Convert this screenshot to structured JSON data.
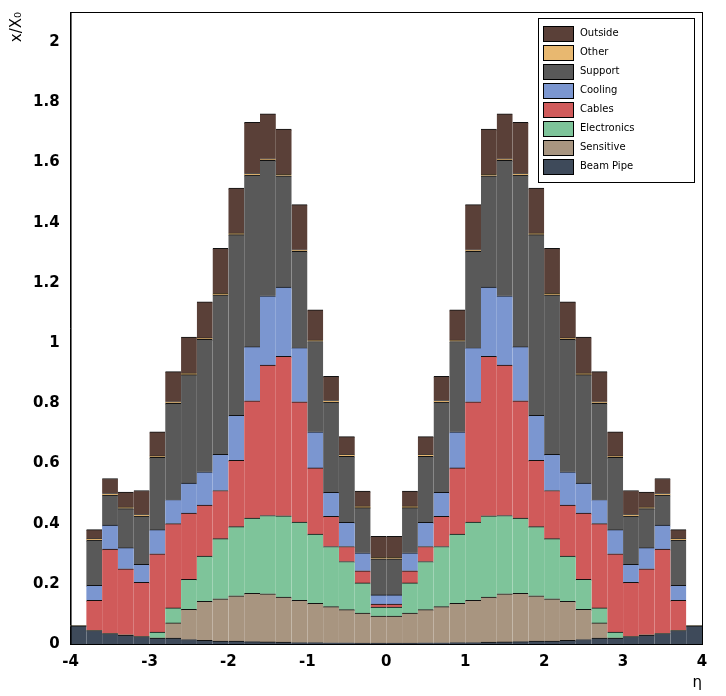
{
  "chart_data": {
    "type": "histogram",
    "stacked": true,
    "grid": false,
    "legend": "upper right",
    "x_label": "η",
    "y_label": "x/X₀",
    "xlim": [
      -4,
      4
    ],
    "xticks": [
      -4,
      -3,
      -2,
      -1,
      0,
      1,
      2,
      3,
      4
    ],
    "ylim": [
      0,
      2.1
    ],
    "yticks": [
      0,
      0.2,
      0.4,
      0.6,
      0.8,
      1,
      1.2,
      1.4,
      1.6,
      1.8,
      2
    ],
    "bins": [
      -4,
      -3.8,
      -3.6,
      -3.4,
      -3.2,
      -3,
      -2.8,
      -2.6,
      -2.4,
      -2.2,
      -2,
      -1.8,
      -1.6,
      -1.4,
      -1.2,
      -1,
      -0.8,
      -0.6,
      -0.4,
      -0.2,
      0,
      0.2,
      0.4,
      0.6,
      0.8,
      1,
      1.2,
      1.4,
      1.6,
      1.8,
      2,
      2.2,
      2.4,
      2.6,
      2.8,
      3,
      3.2,
      3.4,
      3.6,
      3.8,
      4
    ],
    "series": [
      {
        "name": "Beam Pipe",
        "color": "#3e4a5a",
        "values": [
          0.06,
          0.045,
          0.035,
          0.03,
          0.025,
          0.02,
          0.02,
          0.015,
          0.012,
          0.01,
          0.01,
          0.008,
          0.007,
          0.006,
          0.005,
          0.005,
          0.004,
          0.004,
          0.003,
          0.003,
          0.003,
          0.003,
          0.004,
          0.004,
          0.005,
          0.005,
          0.006,
          0.007,
          0.008,
          0.01,
          0.01,
          0.012,
          0.015,
          0.02,
          0.02,
          0.025,
          0.03,
          0.035,
          0.045,
          0.06
        ]
      },
      {
        "name": "Sensitive",
        "color": "#a89580",
        "values": [
          0,
          0,
          0,
          0,
          0,
          0,
          0.05,
          0.1,
          0.13,
          0.14,
          0.15,
          0.16,
          0.16,
          0.15,
          0.14,
          0.13,
          0.12,
          0.11,
          0.1,
          0.09,
          0.09,
          0.1,
          0.11,
          0.12,
          0.13,
          0.14,
          0.15,
          0.16,
          0.16,
          0.15,
          0.14,
          0.13,
          0.1,
          0.05,
          0,
          0,
          0,
          0,
          0,
          0
        ]
      },
      {
        "name": "Electronics",
        "color": "#7ec49a",
        "values": [
          0,
          0,
          0,
          0,
          0,
          0.02,
          0.05,
          0.1,
          0.15,
          0.2,
          0.23,
          0.25,
          0.26,
          0.27,
          0.26,
          0.23,
          0.2,
          0.16,
          0.1,
          0.03,
          0.03,
          0.1,
          0.16,
          0.2,
          0.23,
          0.26,
          0.27,
          0.26,
          0.25,
          0.23,
          0.2,
          0.15,
          0.1,
          0.05,
          0.02,
          0,
          0,
          0,
          0,
          0
        ]
      },
      {
        "name": "Cables",
        "color": "#d05a5a",
        "values": [
          0,
          0.1,
          0.28,
          0.22,
          0.18,
          0.26,
          0.28,
          0.22,
          0.17,
          0.16,
          0.22,
          0.39,
          0.5,
          0.53,
          0.4,
          0.22,
          0.1,
          0.05,
          0.04,
          0.01,
          0.01,
          0.04,
          0.05,
          0.1,
          0.22,
          0.4,
          0.53,
          0.5,
          0.39,
          0.22,
          0.16,
          0.17,
          0.22,
          0.28,
          0.26,
          0.18,
          0.22,
          0.28,
          0.1,
          0
        ]
      },
      {
        "name": "Cooling",
        "color": "#7b96d0",
        "values": [
          0,
          0.05,
          0.08,
          0.07,
          0.06,
          0.08,
          0.08,
          0.1,
          0.11,
          0.12,
          0.15,
          0.18,
          0.23,
          0.23,
          0.18,
          0.12,
          0.08,
          0.08,
          0.06,
          0.03,
          0.03,
          0.06,
          0.08,
          0.08,
          0.12,
          0.18,
          0.23,
          0.23,
          0.18,
          0.15,
          0.12,
          0.11,
          0.1,
          0.08,
          0.08,
          0.06,
          0.07,
          0.08,
          0.05,
          0
        ]
      },
      {
        "name": "Support",
        "color": "#595959",
        "values": [
          0,
          0.15,
          0.1,
          0.13,
          0.16,
          0.24,
          0.32,
          0.36,
          0.44,
          0.53,
          0.6,
          0.57,
          0.45,
          0.37,
          0.32,
          0.3,
          0.3,
          0.22,
          0.15,
          0.12,
          0.12,
          0.15,
          0.22,
          0.3,
          0.3,
          0.32,
          0.37,
          0.45,
          0.57,
          0.6,
          0.53,
          0.44,
          0.36,
          0.32,
          0.24,
          0.16,
          0.13,
          0.1,
          0.15,
          0
        ]
      },
      {
        "name": "Other",
        "color": "#e8b870",
        "values": [
          0,
          0.005,
          0.005,
          0.005,
          0.005,
          0.005,
          0.005,
          0.005,
          0.005,
          0.005,
          0.005,
          0.005,
          0.005,
          0.005,
          0.005,
          0.005,
          0.005,
          0.005,
          0.005,
          0.005,
          0.005,
          0.005,
          0.005,
          0.005,
          0.005,
          0.005,
          0.005,
          0.005,
          0.005,
          0.005,
          0.005,
          0.005,
          0.005,
          0.005,
          0.005,
          0.005,
          0.005,
          0.005,
          0.005,
          0
        ]
      },
      {
        "name": "Outside",
        "color": "#5a4038",
        "values": [
          0,
          0.03,
          0.05,
          0.05,
          0.08,
          0.08,
          0.1,
          0.12,
          0.12,
          0.15,
          0.15,
          0.17,
          0.15,
          0.15,
          0.15,
          0.1,
          0.08,
          0.06,
          0.05,
          0.07,
          0.07,
          0.05,
          0.06,
          0.08,
          0.1,
          0.15,
          0.15,
          0.15,
          0.17,
          0.15,
          0.15,
          0.12,
          0.12,
          0.1,
          0.08,
          0.08,
          0.05,
          0.05,
          0.03,
          0
        ]
      }
    ]
  }
}
